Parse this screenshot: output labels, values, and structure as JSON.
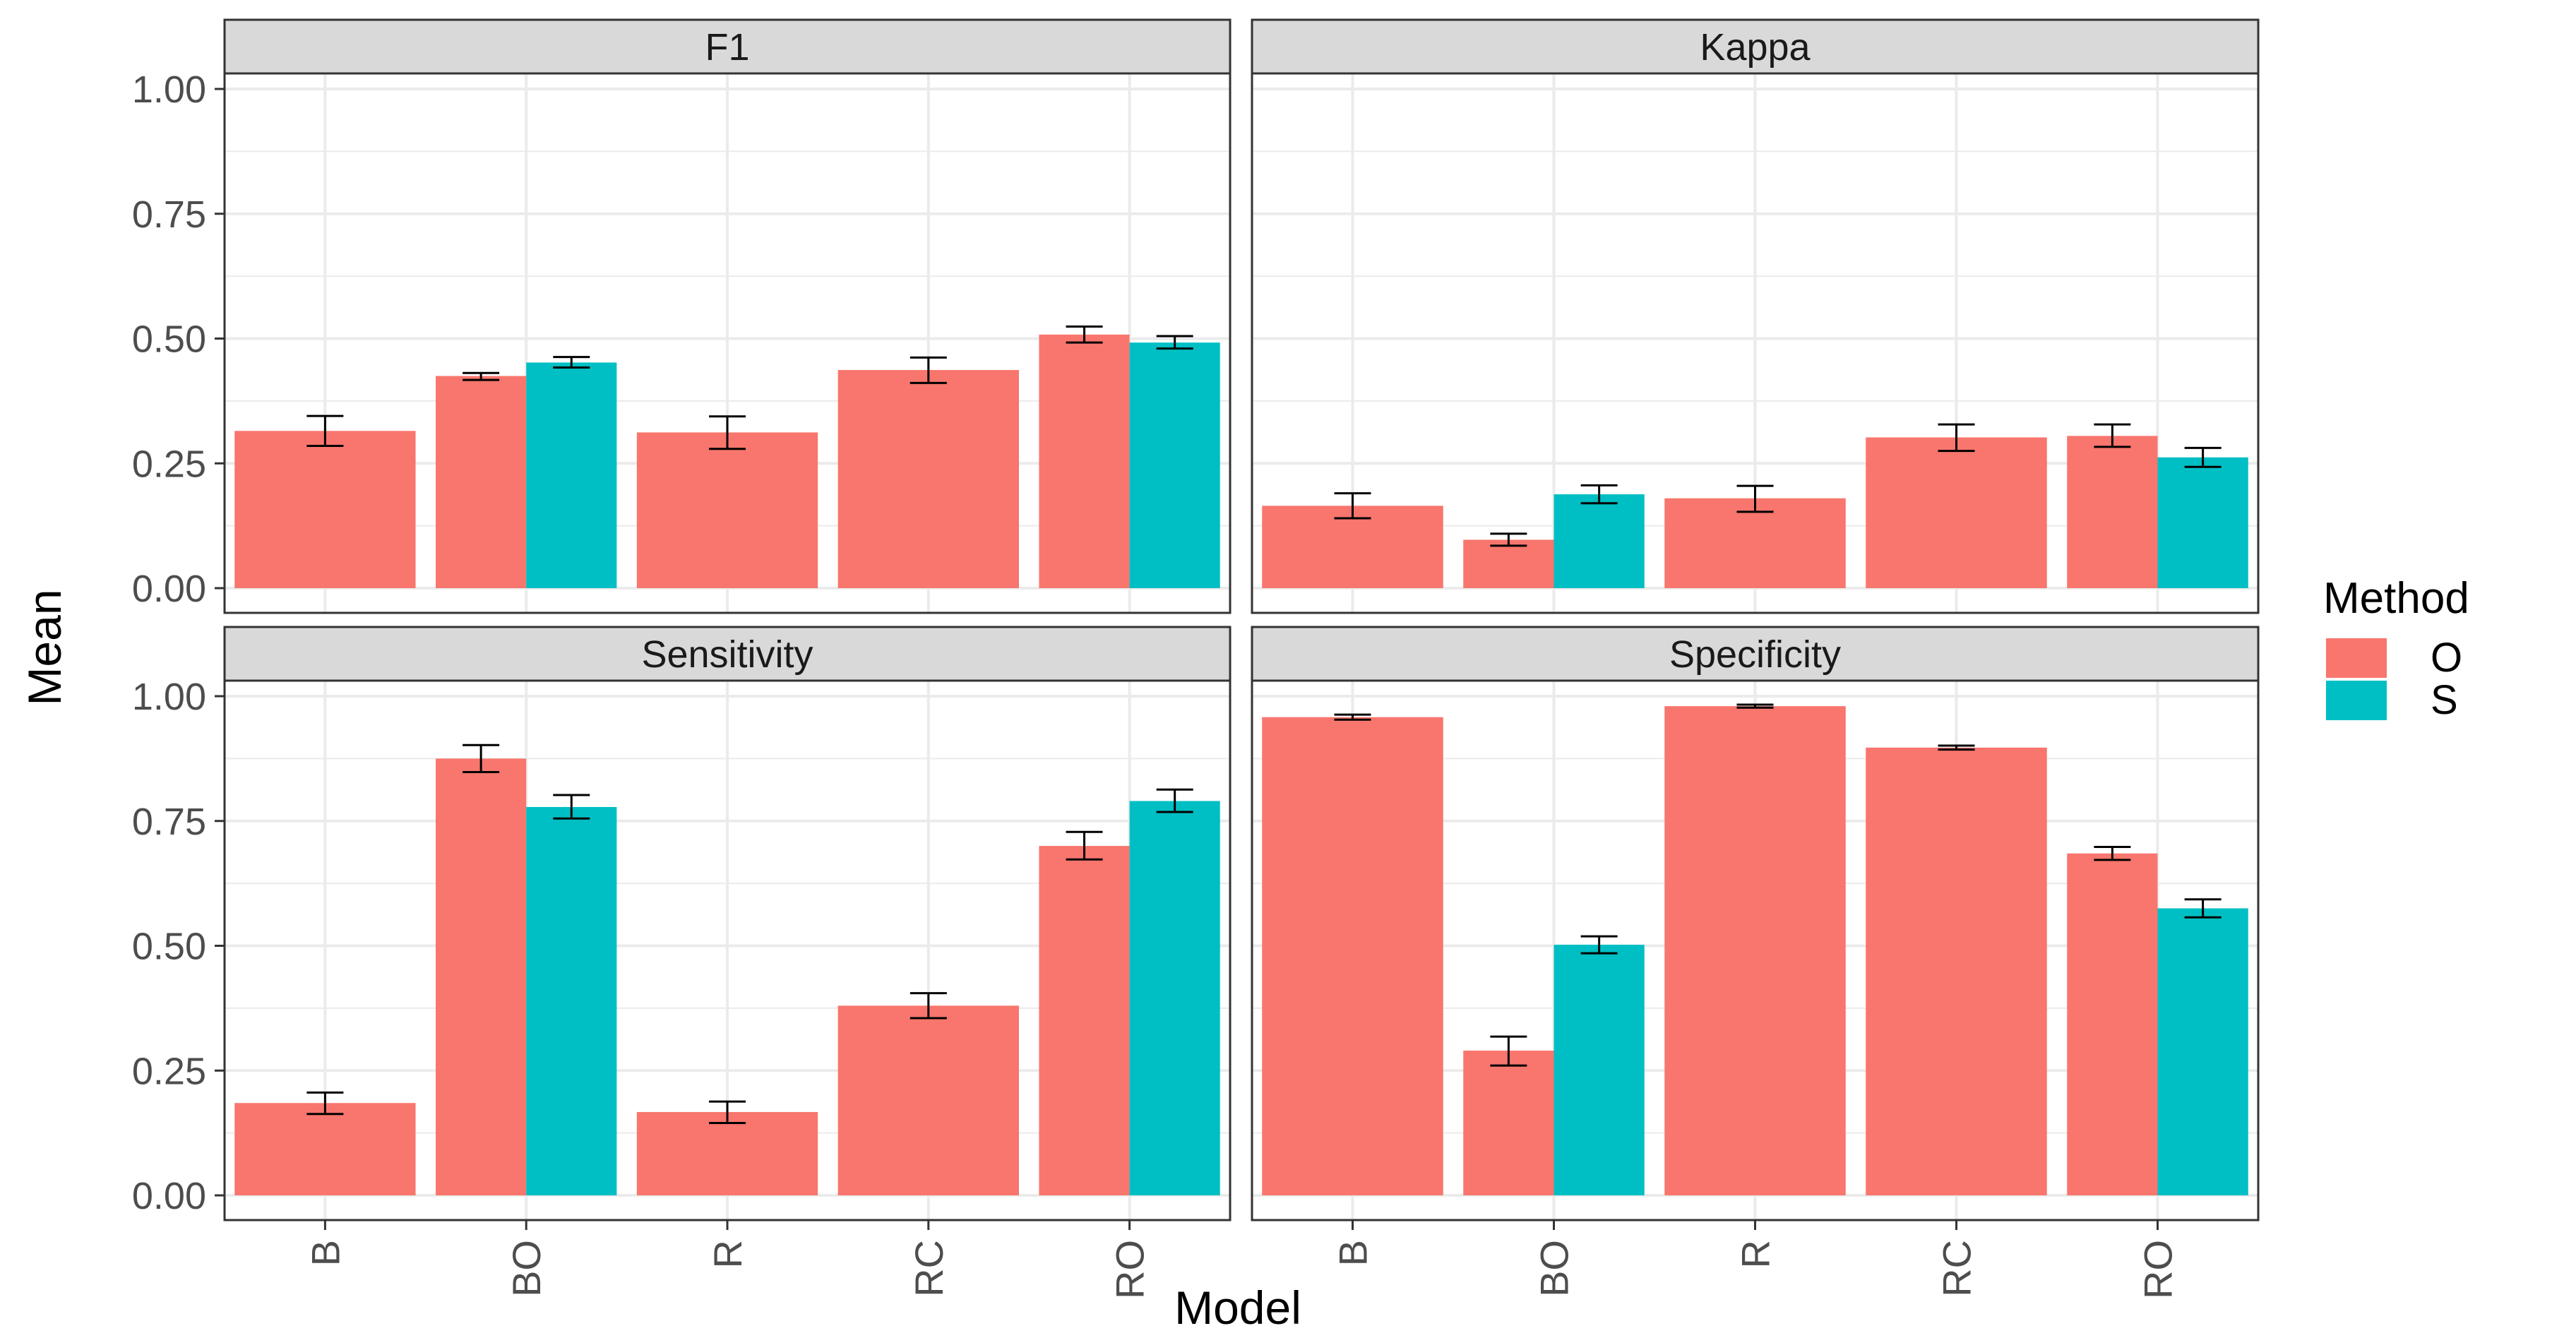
{
  "chart_data": {
    "type": "bar",
    "layout": "facet-grid-2x2",
    "xlabel": "Model",
    "ylabel": "Mean",
    "categories": [
      "B",
      "BO",
      "R",
      "RC",
      "RO"
    ],
    "ylim": [
      0,
      1
    ],
    "yticks": [
      "0.00",
      "0.25",
      "0.50",
      "0.75",
      "1.00"
    ],
    "legend": {
      "title": "Method",
      "position": "right",
      "entries": [
        {
          "key": "O",
          "label": "O",
          "color": "#F8766D"
        },
        {
          "key": "S",
          "label": "S",
          "color": "#00BFC4"
        }
      ]
    },
    "panels": [
      {
        "title": "F1",
        "bars": [
          {
            "category": "B",
            "method": "O",
            "value": 0.315,
            "lo": 0.285,
            "hi": 0.345
          },
          {
            "category": "BO",
            "method": "O",
            "value": 0.425,
            "lo": 0.417,
            "hi": 0.431
          },
          {
            "category": "BO",
            "method": "S",
            "value": 0.452,
            "lo": 0.442,
            "hi": 0.463
          },
          {
            "category": "R",
            "method": "O",
            "value": 0.312,
            "lo": 0.279,
            "hi": 0.344
          },
          {
            "category": "RC",
            "method": "O",
            "value": 0.437,
            "lo": 0.411,
            "hi": 0.462
          },
          {
            "category": "RO",
            "method": "O",
            "value": 0.508,
            "lo": 0.492,
            "hi": 0.524
          },
          {
            "category": "RO",
            "method": "S",
            "value": 0.492,
            "lo": 0.48,
            "hi": 0.505
          }
        ]
      },
      {
        "title": "Kappa",
        "bars": [
          {
            "category": "B",
            "method": "O",
            "value": 0.165,
            "lo": 0.14,
            "hi": 0.19
          },
          {
            "category": "BO",
            "method": "O",
            "value": 0.097,
            "lo": 0.085,
            "hi": 0.109
          },
          {
            "category": "BO",
            "method": "S",
            "value": 0.188,
            "lo": 0.17,
            "hi": 0.206
          },
          {
            "category": "R",
            "method": "O",
            "value": 0.18,
            "lo": 0.153,
            "hi": 0.205
          },
          {
            "category": "RC",
            "method": "O",
            "value": 0.302,
            "lo": 0.275,
            "hi": 0.328
          },
          {
            "category": "RO",
            "method": "O",
            "value": 0.305,
            "lo": 0.283,
            "hi": 0.328
          },
          {
            "category": "RO",
            "method": "S",
            "value": 0.262,
            "lo": 0.243,
            "hi": 0.281
          }
        ]
      },
      {
        "title": "Sensitivity",
        "bars": [
          {
            "category": "B",
            "method": "O",
            "value": 0.185,
            "lo": 0.163,
            "hi": 0.206
          },
          {
            "category": "BO",
            "method": "O",
            "value": 0.875,
            "lo": 0.848,
            "hi": 0.902
          },
          {
            "category": "BO",
            "method": "S",
            "value": 0.778,
            "lo": 0.755,
            "hi": 0.802
          },
          {
            "category": "R",
            "method": "O",
            "value": 0.167,
            "lo": 0.145,
            "hi": 0.188
          },
          {
            "category": "RC",
            "method": "O",
            "value": 0.38,
            "lo": 0.355,
            "hi": 0.405
          },
          {
            "category": "RO",
            "method": "O",
            "value": 0.7,
            "lo": 0.673,
            "hi": 0.728
          },
          {
            "category": "RO",
            "method": "S",
            "value": 0.79,
            "lo": 0.768,
            "hi": 0.813
          }
        ]
      },
      {
        "title": "Specificity",
        "bars": [
          {
            "category": "B",
            "method": "O",
            "value": 0.958,
            "lo": 0.953,
            "hi": 0.963
          },
          {
            "category": "BO",
            "method": "O",
            "value": 0.29,
            "lo": 0.26,
            "hi": 0.318
          },
          {
            "category": "BO",
            "method": "S",
            "value": 0.502,
            "lo": 0.485,
            "hi": 0.519
          },
          {
            "category": "R",
            "method": "O",
            "value": 0.98,
            "lo": 0.977,
            "hi": 0.983
          },
          {
            "category": "RC",
            "method": "O",
            "value": 0.897,
            "lo": 0.893,
            "hi": 0.901
          },
          {
            "category": "RO",
            "method": "O",
            "value": 0.685,
            "lo": 0.672,
            "hi": 0.698
          },
          {
            "category": "RO",
            "method": "S",
            "value": 0.575,
            "lo": 0.557,
            "hi": 0.593
          }
        ]
      }
    ]
  }
}
